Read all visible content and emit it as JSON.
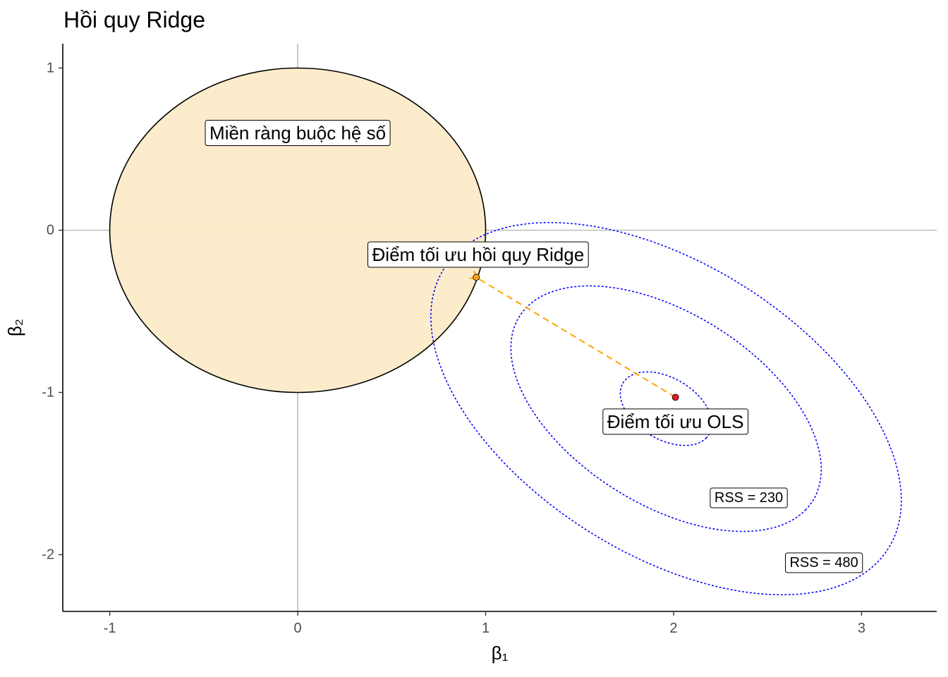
{
  "chart_data": {
    "type": "scatter",
    "title": "Hồi quy Ridge",
    "xlabel": "β₁",
    "ylabel": "β₂",
    "xlim": [
      -1.25,
      3.4
    ],
    "ylim": [
      -2.35,
      1.15
    ],
    "xticks": [
      -1,
      0,
      1,
      2,
      3
    ],
    "yticks": [
      -2,
      -1,
      0,
      1
    ],
    "xtick_labels": [
      "-1",
      "0",
      "1",
      "2",
      "3"
    ],
    "ytick_labels": [
      "-2",
      "-1",
      "0",
      "1"
    ],
    "grid": false,
    "constraint_region": {
      "center": [
        0,
        0
      ],
      "radius": 1,
      "fill": "#FDEBC8",
      "stroke": "#000000",
      "label": "Miền ràng buộc hệ số",
      "label_pos": [
        0,
        0.6
      ]
    },
    "ols_point": {
      "x": 2.01,
      "y": -1.03,
      "color": "#E31A1C",
      "label": "Điểm tối ưu OLS",
      "label_pos": [
        2.01,
        -1.18
      ]
    },
    "ridge_point": {
      "x": 0.95,
      "y": -0.29,
      "color": "#F4A020",
      "label": "Điểm tối ưu hồi quy Ridge",
      "label_pos": [
        0.96,
        -0.15
      ]
    },
    "arrow": {
      "from": [
        2.01,
        -1.03
      ],
      "to": [
        0.95,
        -0.29
      ],
      "color": "#FFA500",
      "style": "dashed"
    },
    "rss_contours": [
      {
        "center": [
          1.96,
          -1.1
        ],
        "semi_major": 0.28,
        "semi_minor": 0.18,
        "angle_deg": -40,
        "label": ""
      },
      {
        "center": [
          1.96,
          -1.1
        ],
        "semi_major": 0.97,
        "semi_minor": 0.56,
        "angle_deg": -40,
        "label": "RSS = 230",
        "label_pos": [
          2.4,
          -1.65
        ]
      },
      {
        "center": [
          1.96,
          -1.1
        ],
        "semi_major": 1.47,
        "semi_minor": 0.85,
        "angle_deg": -40,
        "label": "RSS = 480",
        "label_pos": [
          2.8,
          -2.05
        ]
      }
    ],
    "contour_color": "#0000FF",
    "axis_lines": {
      "hline": 0,
      "vline": 0,
      "color": "#BEBEBE"
    }
  }
}
